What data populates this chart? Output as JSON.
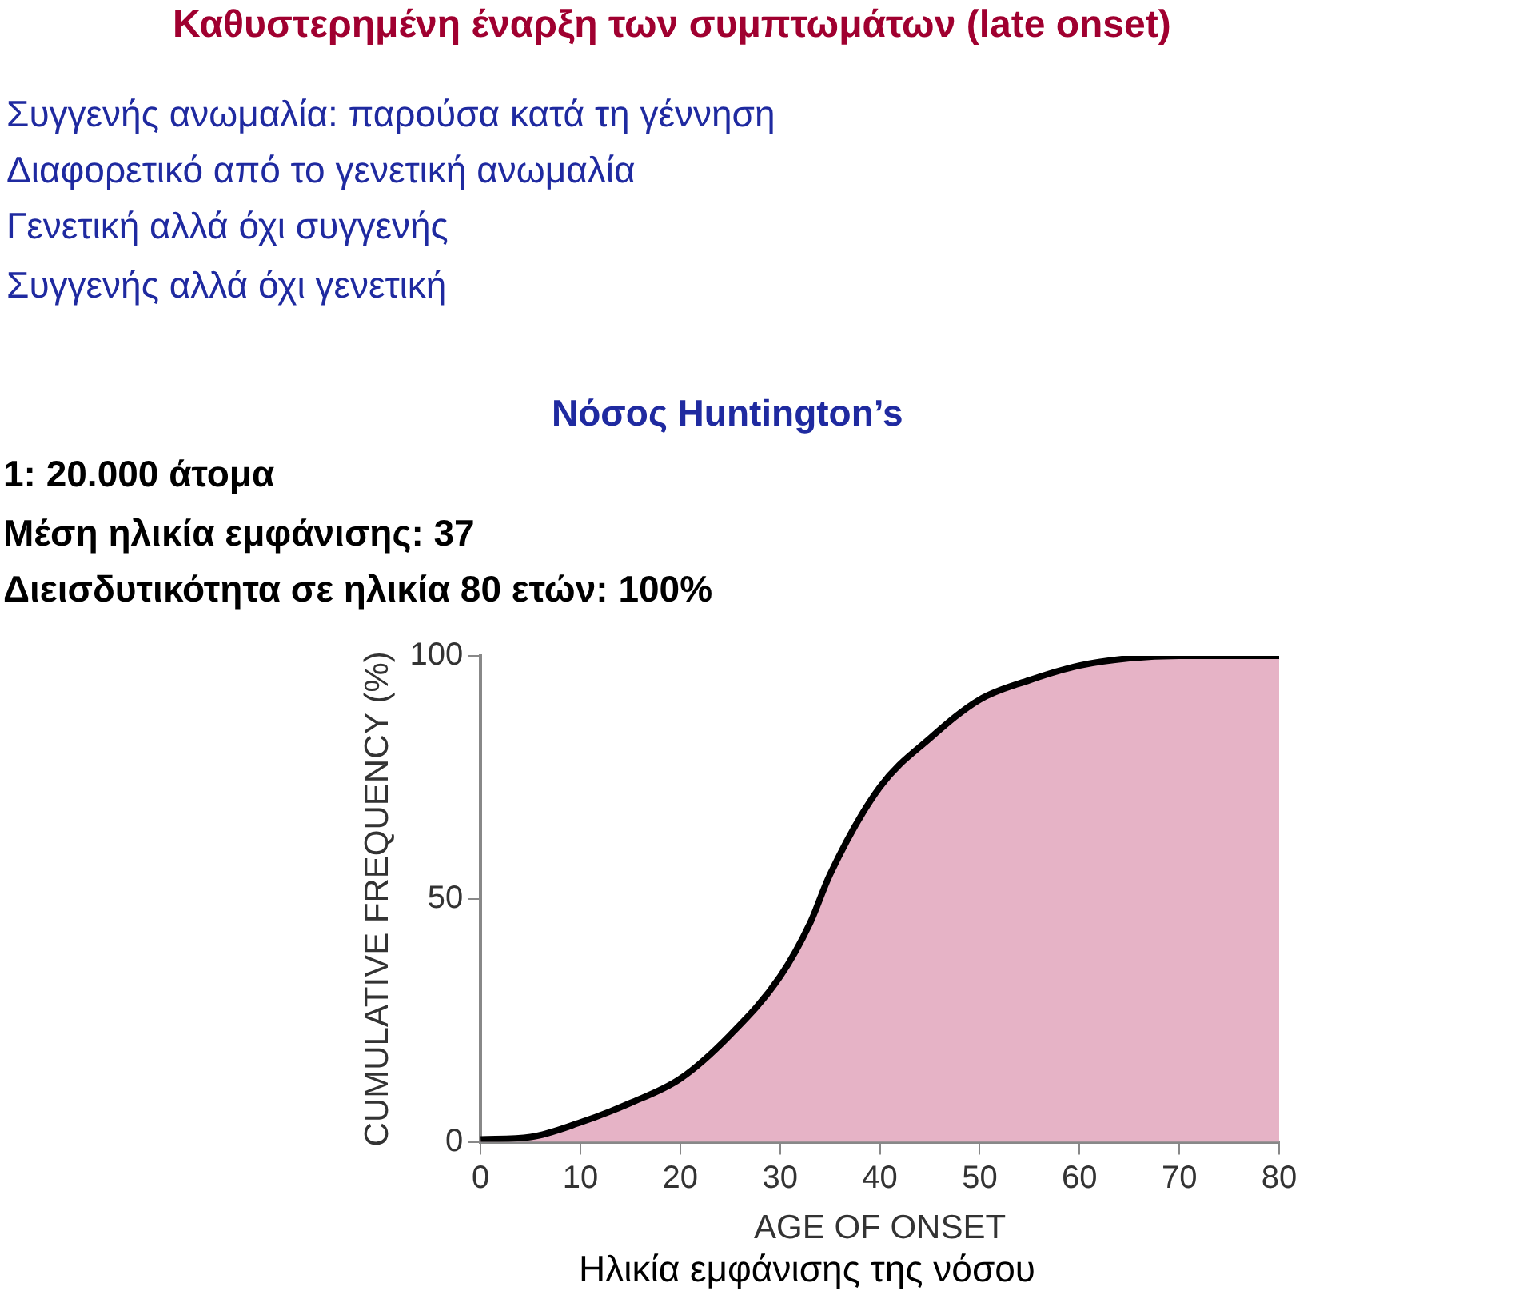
{
  "chart_data": {
    "type": "area",
    "title": "Καθυστερημένη έναρξη των συμπτωμάτων (late onset)",
    "annotations": [
      "Συγγενής ανωμαλία: παρούσα κατά τη γέννηση",
      "Διαφορετικό από το γενετική ανωμαλία",
      "Γενετική αλλά όχι συγγενής",
      "Συγγενής αλλά όχι γενετική",
      "Νόσος Huntington’s",
      "1: 20.000 άτομα",
      "Μέση ηλικία εμφάνισης: 37",
      "Διεισδυτικότητα σε ηλικία 80 ετών: 100%",
      "Ηλικία εμφάνισης της νόσου"
    ],
    "xlabel": "AGE OF ONSET",
    "ylabel": "CUMULATIVE FREQUENCY (%)",
    "x": [
      0,
      5,
      10,
      15,
      20,
      25,
      30,
      33,
      35,
      40,
      45,
      50,
      55,
      60,
      65,
      70,
      75,
      80
    ],
    "series": [
      {
        "color": "#e6b3c6",
        "values": [
          0.5,
          1,
          4,
          8,
          13,
          22,
          34,
          45,
          55,
          73,
          83,
          91,
          95,
          98,
          99.5,
          100,
          100,
          100
        ]
      }
    ],
    "xlim": [
      0,
      80
    ],
    "xticks": [
      0,
      10,
      20,
      30,
      40,
      50,
      60,
      70,
      80
    ],
    "ylim": [
      0,
      100
    ],
    "yticks": [
      0,
      50,
      100
    ],
    "grid": false,
    "legend": false
  }
}
